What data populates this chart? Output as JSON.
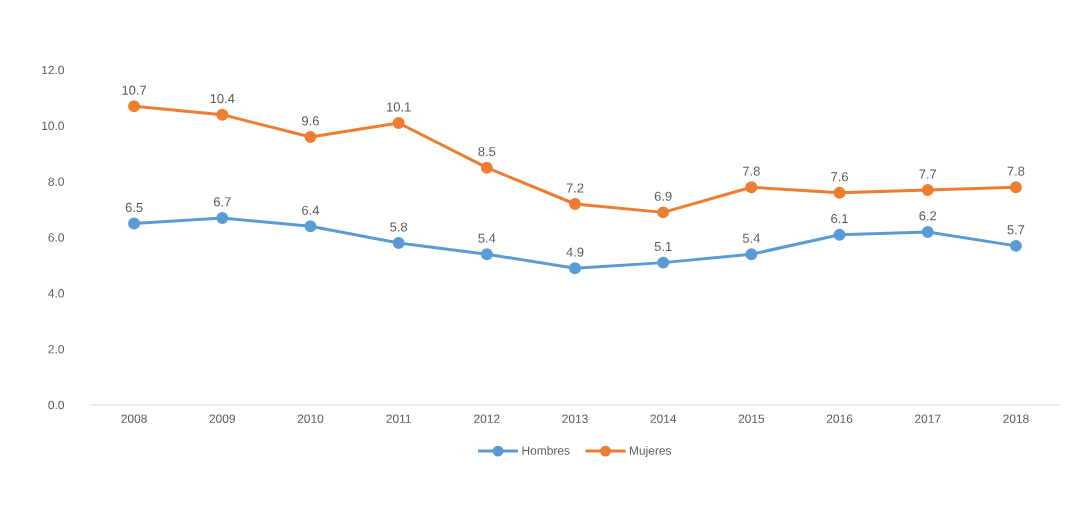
{
  "chart_data": {
    "type": "line",
    "categories": [
      "2008",
      "2009",
      "2010",
      "2011",
      "2012",
      "2013",
      "2014",
      "2015",
      "2016",
      "2017",
      "2018"
    ],
    "series": [
      {
        "name": "Hombres",
        "color": "#5b9bd5",
        "values": [
          6.5,
          6.7,
          6.4,
          5.8,
          5.4,
          4.9,
          5.1,
          5.4,
          6.1,
          6.2,
          5.7
        ]
      },
      {
        "name": "Mujeres",
        "color": "#ed7d31",
        "values": [
          10.7,
          10.4,
          9.6,
          10.1,
          8.5,
          7.2,
          6.9,
          7.8,
          7.6,
          7.7,
          7.8
        ]
      }
    ],
    "ylim": [
      0,
      12
    ],
    "yticks": [
      {
        "value": 0,
        "label": "0.0"
      },
      {
        "value": 2,
        "label": "2.0"
      },
      {
        "value": 4,
        "label": "4.0"
      },
      {
        "value": 6,
        "label": "6.0"
      },
      {
        "value": 8,
        "label": "8.0"
      },
      {
        "value": 10,
        "label": "10.0"
      },
      {
        "value": 12,
        "label": "12.0"
      }
    ],
    "grid": false,
    "legend": "bottom",
    "marker": "circle",
    "line_style": "solid",
    "data_labels": true
  }
}
